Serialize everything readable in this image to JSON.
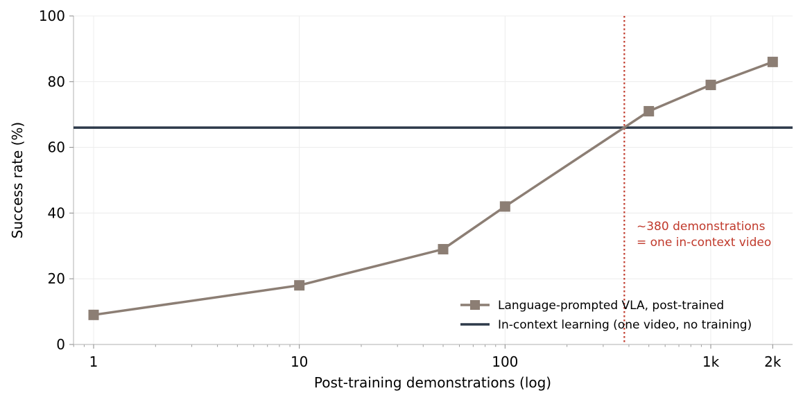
{
  "chart_data": {
    "type": "line",
    "xlabel": "Post-training demonstrations (log)",
    "ylabel": "Success rate (%)",
    "x_scale": "log",
    "xlim": [
      0.8,
      2500
    ],
    "ylim": [
      0,
      100
    ],
    "x_ticks": [
      {
        "value": 1,
        "label": "1"
      },
      {
        "value": 10,
        "label": "10"
      },
      {
        "value": 100,
        "label": "100"
      },
      {
        "value": 1000,
        "label": "1k"
      },
      {
        "value": 2000,
        "label": "2k"
      }
    ],
    "y_ticks": [
      {
        "value": 0,
        "label": "0"
      },
      {
        "value": 20,
        "label": "20"
      },
      {
        "value": 40,
        "label": "40"
      },
      {
        "value": 60,
        "label": "60"
      },
      {
        "value": 80,
        "label": "80"
      },
      {
        "value": 100,
        "label": "100"
      }
    ],
    "grid": true,
    "legend_position": "lower-right",
    "series": [
      {
        "name": "Language-prompted VLA, post-trained",
        "color": "#8c7e74",
        "marker": "square",
        "x": [
          1,
          10,
          50,
          100,
          500,
          1000,
          2000
        ],
        "y": [
          9,
          18,
          29,
          42,
          71,
          79,
          86
        ]
      }
    ],
    "reference_lines": [
      {
        "name": "In-context learning (one video, no training)",
        "orientation": "horizontal",
        "value": 66,
        "color": "#2d3a4a"
      },
      {
        "orientation": "vertical",
        "value": 380,
        "color": "#c0392b",
        "style": "dotted"
      }
    ],
    "annotation": {
      "lines": [
        "~380 demonstrations",
        "= one in-context video"
      ],
      "color": "#c0392b"
    }
  }
}
